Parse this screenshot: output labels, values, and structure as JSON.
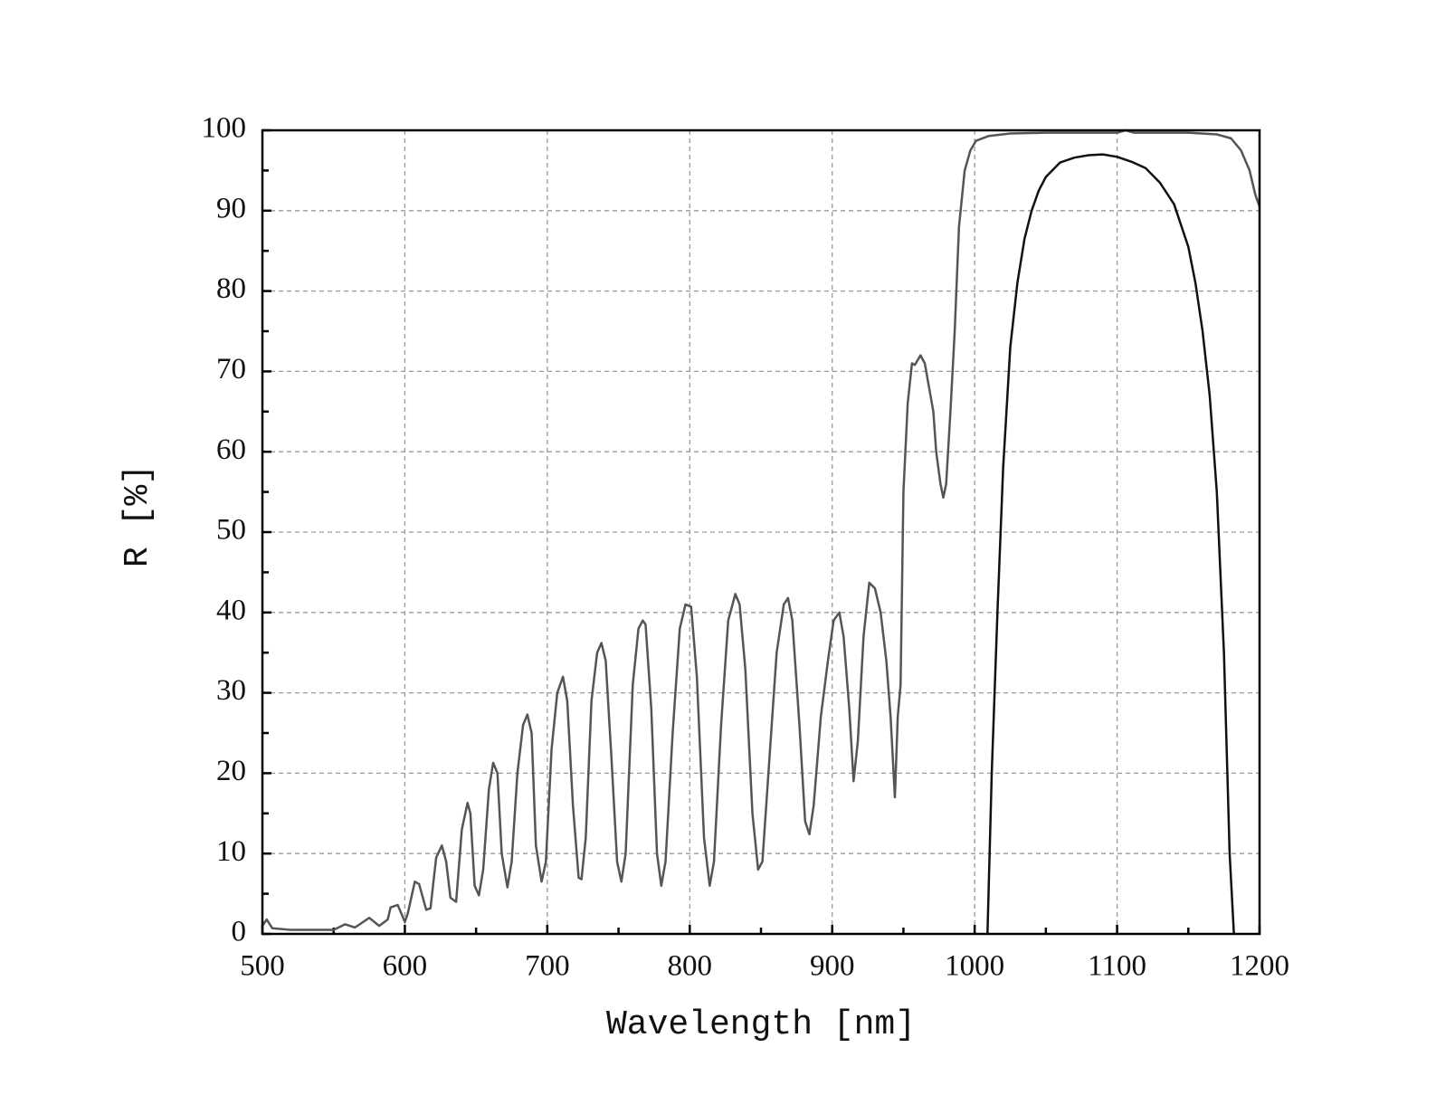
{
  "chart_data": {
    "type": "line",
    "xlabel": "Wavelength [nm]",
    "ylabel": "R [%]",
    "xlim": [
      500,
      1200
    ],
    "xticks": [
      500,
      600,
      700,
      800,
      900,
      1000,
      1100,
      1200
    ],
    "xminorticks": [
      550,
      650,
      750,
      850,
      950,
      1050,
      1150
    ],
    "ylim": [
      0,
      100
    ],
    "yticks": [
      0,
      10,
      20,
      30,
      40,
      50,
      60,
      70,
      80,
      90,
      100
    ],
    "yminorticks": [
      5,
      15,
      25,
      35,
      45,
      55,
      65,
      75,
      85,
      95
    ],
    "grid": true,
    "series": [
      {
        "color": "#555555",
        "x": [
          500,
          503,
          507,
          520,
          550,
          558,
          565,
          575,
          582,
          588,
          590,
          595,
          600,
          602,
          607,
          610,
          615,
          618,
          622,
          626,
          629,
          632,
          636,
          640,
          644,
          646,
          649,
          652,
          655,
          659,
          662,
          665,
          668,
          672,
          675,
          679,
          683,
          686,
          689,
          692,
          696,
          699,
          703,
          707,
          711,
          714,
          718,
          722,
          724,
          727,
          731,
          735,
          738,
          741,
          745,
          749,
          752,
          755,
          760,
          764,
          767,
          769,
          773,
          777,
          780,
          783,
          788,
          793,
          797,
          801,
          805,
          810,
          814,
          817,
          822,
          827,
          832,
          835,
          839,
          844,
          848,
          851,
          856,
          861,
          866,
          869,
          872,
          877,
          881,
          884,
          887,
          892,
          897,
          901,
          905,
          908,
          912,
          915,
          918,
          922,
          926,
          930,
          934,
          938,
          941,
          944,
          946,
          948,
          950,
          953,
          956,
          958,
          962,
          965,
          968,
          971,
          973,
          976,
          978,
          980,
          983,
          986,
          989,
          993,
          997,
          1001,
          1010,
          1025,
          1050,
          1100,
          1106,
          1112,
          1150,
          1170,
          1180,
          1187,
          1193,
          1197,
          1200
        ],
        "values": [
          1,
          1.8,
          0.7,
          0.5,
          0.5,
          1.2,
          0.8,
          2,
          1,
          1.8,
          3.3,
          3.6,
          1.5,
          2.5,
          6.5,
          6.2,
          3,
          3.2,
          9.5,
          11,
          9,
          4.5,
          4,
          13,
          16.3,
          15,
          6,
          4.8,
          8,
          18,
          21.3,
          20,
          10,
          5.8,
          9,
          20,
          26,
          27.3,
          25,
          11,
          6.5,
          9,
          23,
          30,
          32,
          29,
          16,
          7,
          6.8,
          12,
          29,
          35,
          36.2,
          34,
          22,
          9,
          6.5,
          10,
          31,
          38,
          39,
          38.5,
          28,
          10,
          6,
          9,
          25,
          38,
          41,
          40.7,
          32,
          12,
          6,
          9,
          26,
          39,
          42.3,
          41,
          33,
          15,
          8,
          9,
          22,
          35,
          41,
          41.8,
          39,
          26,
          14,
          12.4,
          16,
          27,
          34,
          39,
          40,
          37,
          28,
          19,
          24,
          37,
          43.7,
          43,
          40,
          34,
          27,
          17,
          27,
          31,
          55,
          66,
          71,
          70.8,
          72,
          71,
          68,
          65,
          60,
          56,
          54.3,
          56,
          65,
          75,
          88,
          95,
          97.5,
          98.7,
          99.3,
          99.6,
          99.7,
          99.7,
          100,
          99.7,
          99.7,
          99.5,
          99,
          97.5,
          95,
          92,
          90.5
        ]
      },
      {
        "color": "#111111",
        "x": [
          1009,
          1012,
          1016,
          1020,
          1025,
          1030,
          1035,
          1040,
          1045,
          1050,
          1060,
          1070,
          1080,
          1090,
          1100,
          1110,
          1120,
          1130,
          1140,
          1150,
          1155,
          1160,
          1165,
          1170,
          1175,
          1179,
          1182
        ],
        "values": [
          0,
          20,
          40,
          58,
          73,
          81,
          86.5,
          90,
          92.5,
          94.2,
          96,
          96.6,
          96.9,
          97,
          96.7,
          96.1,
          95.3,
          93.5,
          90.8,
          85.5,
          81,
          75,
          67,
          55,
          35,
          10,
          0
        ]
      }
    ]
  }
}
